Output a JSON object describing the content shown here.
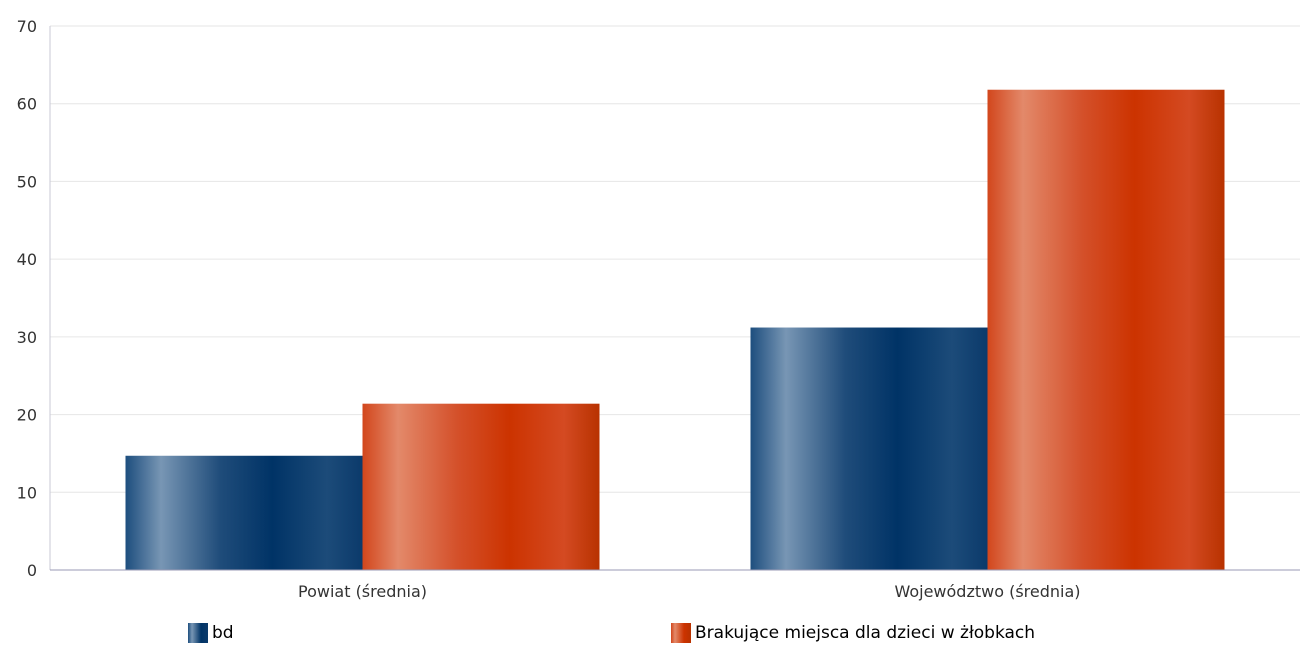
{
  "chart_data": {
    "type": "bar",
    "categories": [
      "Powiat (średnia)",
      "Województwo (średnia)"
    ],
    "series": [
      {
        "name": "bd",
        "values": [
          14.7,
          31.2
        ],
        "color": "#003366"
      },
      {
        "name": "Brakujące miejsca dla dzieci w żłobkach",
        "values": [
          21.4,
          61.8
        ],
        "color": "#cc3300"
      }
    ],
    "yticks": [
      0,
      10,
      20,
      30,
      40,
      50,
      60,
      70
    ],
    "ylim": [
      0,
      70
    ],
    "title": "",
    "xlabel": "",
    "ylabel": "",
    "grid": true,
    "legend_position": "bottom"
  }
}
